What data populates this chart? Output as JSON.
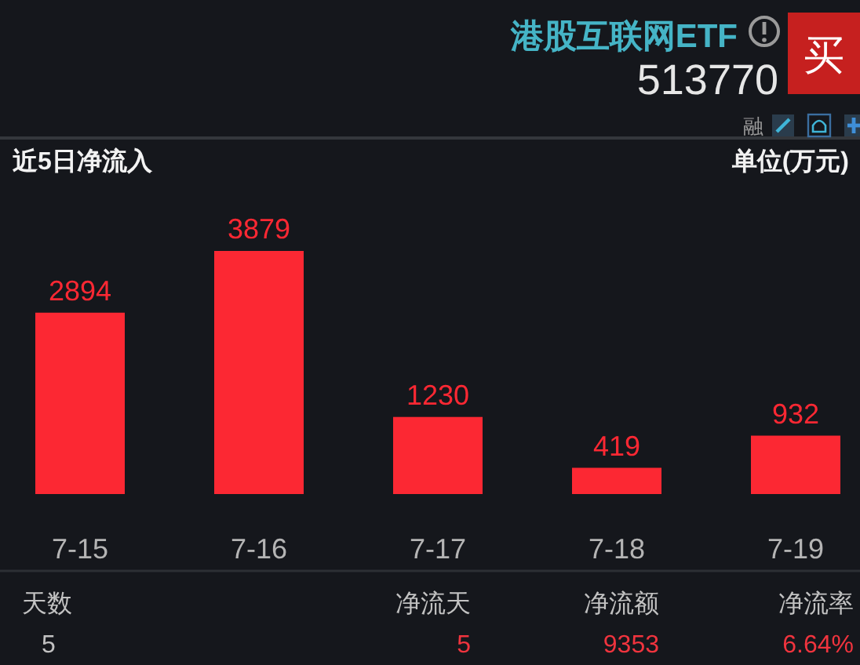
{
  "chart_data": {
    "type": "bar",
    "title": "近5日净流入",
    "ylabel": "单位(万元)",
    "categories": [
      "7-15",
      "7-16",
      "7-17",
      "7-18",
      "7-19"
    ],
    "values": [
      2894,
      3879,
      1230,
      419,
      932
    ],
    "color": "#fc2833",
    "data_labels": true,
    "annotations": [
      "港股互联网ETF",
      "513770",
      "买",
      "融",
      "天数",
      "净流天",
      "净流额",
      "净流率",
      "5",
      "5",
      "9353",
      "6.64%"
    ]
  }
}
